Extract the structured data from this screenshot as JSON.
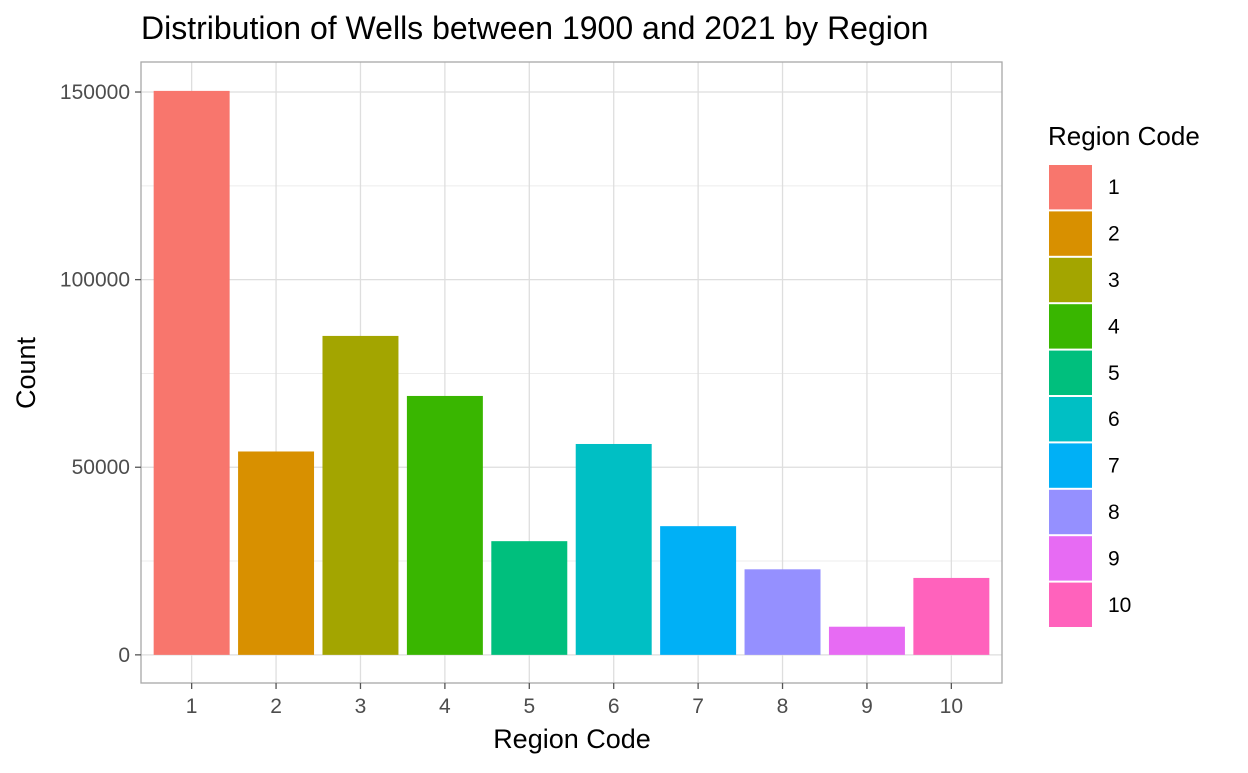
{
  "chart_data": {
    "type": "bar",
    "title": "Distribution of Wells between 1900 and 2021 by Region",
    "xlabel": "Region Code",
    "ylabel": "Count",
    "categories": [
      "1",
      "2",
      "3",
      "4",
      "5",
      "6",
      "7",
      "8",
      "9",
      "10"
    ],
    "values": [
      150300,
      54200,
      85000,
      69000,
      30300,
      56200,
      34300,
      22800,
      7500,
      20500
    ],
    "ylim": [
      -7500,
      158000
    ],
    "yticks": [
      0,
      50000,
      100000,
      150000
    ],
    "ytick_labels": [
      "0",
      "50000",
      "100000",
      "150000"
    ],
    "grid": true,
    "legend": {
      "title": "Region Code",
      "position": "right",
      "entries": [
        "1",
        "2",
        "3",
        "4",
        "5",
        "6",
        "7",
        "8",
        "9",
        "10"
      ]
    },
    "colors": [
      "#F8766D",
      "#D89000",
      "#A3A500",
      "#39B600",
      "#00BF7D",
      "#00BFC4",
      "#00B0F6",
      "#9590FF",
      "#E76BF3",
      "#FF62BC"
    ]
  }
}
